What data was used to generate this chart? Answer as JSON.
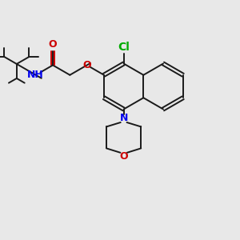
{
  "bg_color": "#e8e8e8",
  "bond_color": "#1a1a1a",
  "N_color": "#0000ee",
  "O_color": "#cc0000",
  "Cl_color": "#00aa00",
  "lw": 1.4,
  "fs": 8.5,
  "xlim": [
    0,
    10
  ],
  "ylim": [
    0,
    10
  ]
}
